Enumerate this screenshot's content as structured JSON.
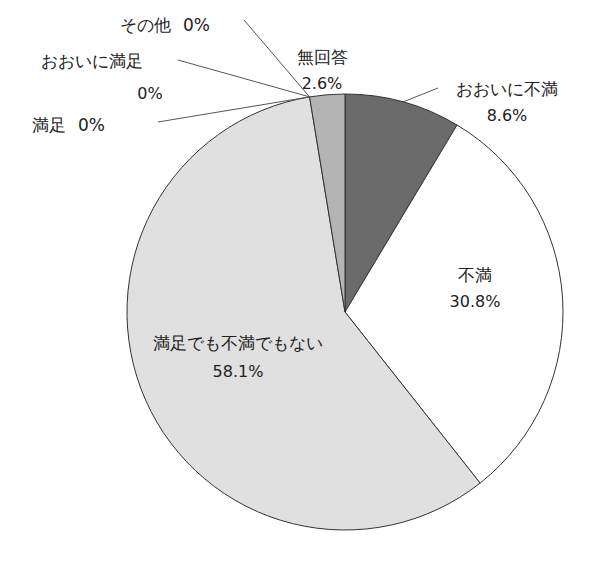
{
  "chart_data": {
    "type": "pie",
    "categories": [
      "おおいに不満",
      "不満",
      "満足でも不満でもない",
      "満足",
      "おおいに満足",
      "その他",
      "無回答"
    ],
    "values": [
      8.6,
      30.8,
      58.1,
      0,
      0,
      0,
      2.6
    ],
    "value_labels": [
      "8.6%",
      "30.8%",
      "58.1%",
      "0%",
      "0%",
      "0%",
      "2.6%"
    ],
    "colors": [
      "#6b6b6b",
      "#ffffff",
      "#e0e0e0",
      "#e0e0e0",
      "#e0e0e0",
      "#e0e0e0",
      "#b4b4b4"
    ],
    "data_labels": true
  }
}
